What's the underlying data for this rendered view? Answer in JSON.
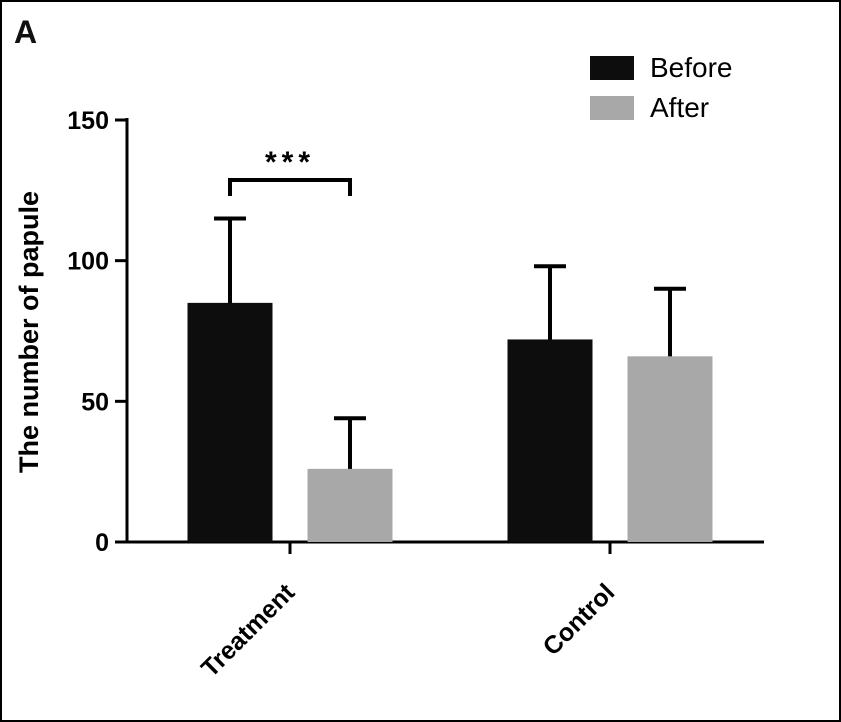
{
  "panel_label": "A",
  "chart_data": {
    "type": "bar",
    "title": "",
    "xlabel": "",
    "ylabel": "The number of papule",
    "categories": [
      "Treatment",
      "Control"
    ],
    "series": [
      {
        "name": "Before",
        "color": "#0d0d0d",
        "values": [
          85,
          72
        ],
        "errors_up": [
          30,
          26
        ]
      },
      {
        "name": "After",
        "color": "#a8a8a8",
        "values": [
          26,
          66
        ],
        "errors_up": [
          18,
          24
        ]
      }
    ],
    "ylim": [
      0,
      150
    ],
    "yticks": [
      0,
      50,
      100,
      150
    ],
    "grid": false,
    "legend_position": "top-right",
    "significance": {
      "label": "***",
      "category": "Treatment",
      "between": [
        "Before",
        "After"
      ]
    }
  }
}
